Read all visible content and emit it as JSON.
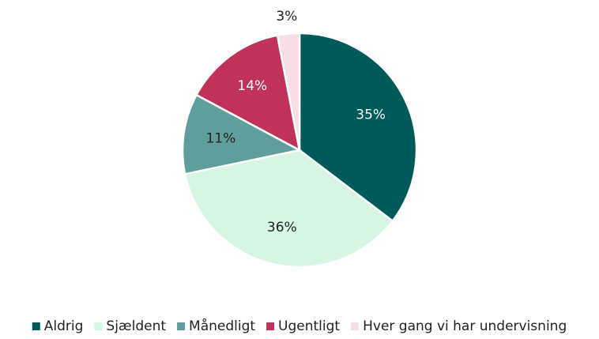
{
  "chart_data": {
    "type": "pie",
    "categories": [
      "Aldrig",
      "Sjældent",
      "Månedligt",
      "Ugentligt",
      "Hver gang vi har undervisning"
    ],
    "values": [
      35,
      36,
      11,
      14,
      3
    ],
    "value_labels": [
      "35%",
      "36%",
      "11%",
      "14%",
      "3%"
    ],
    "colors": [
      "#005a5a",
      "#d6f5e3",
      "#5f9e9c",
      "#c0325a",
      "#f7dde6"
    ],
    "legend": "bottom"
  }
}
